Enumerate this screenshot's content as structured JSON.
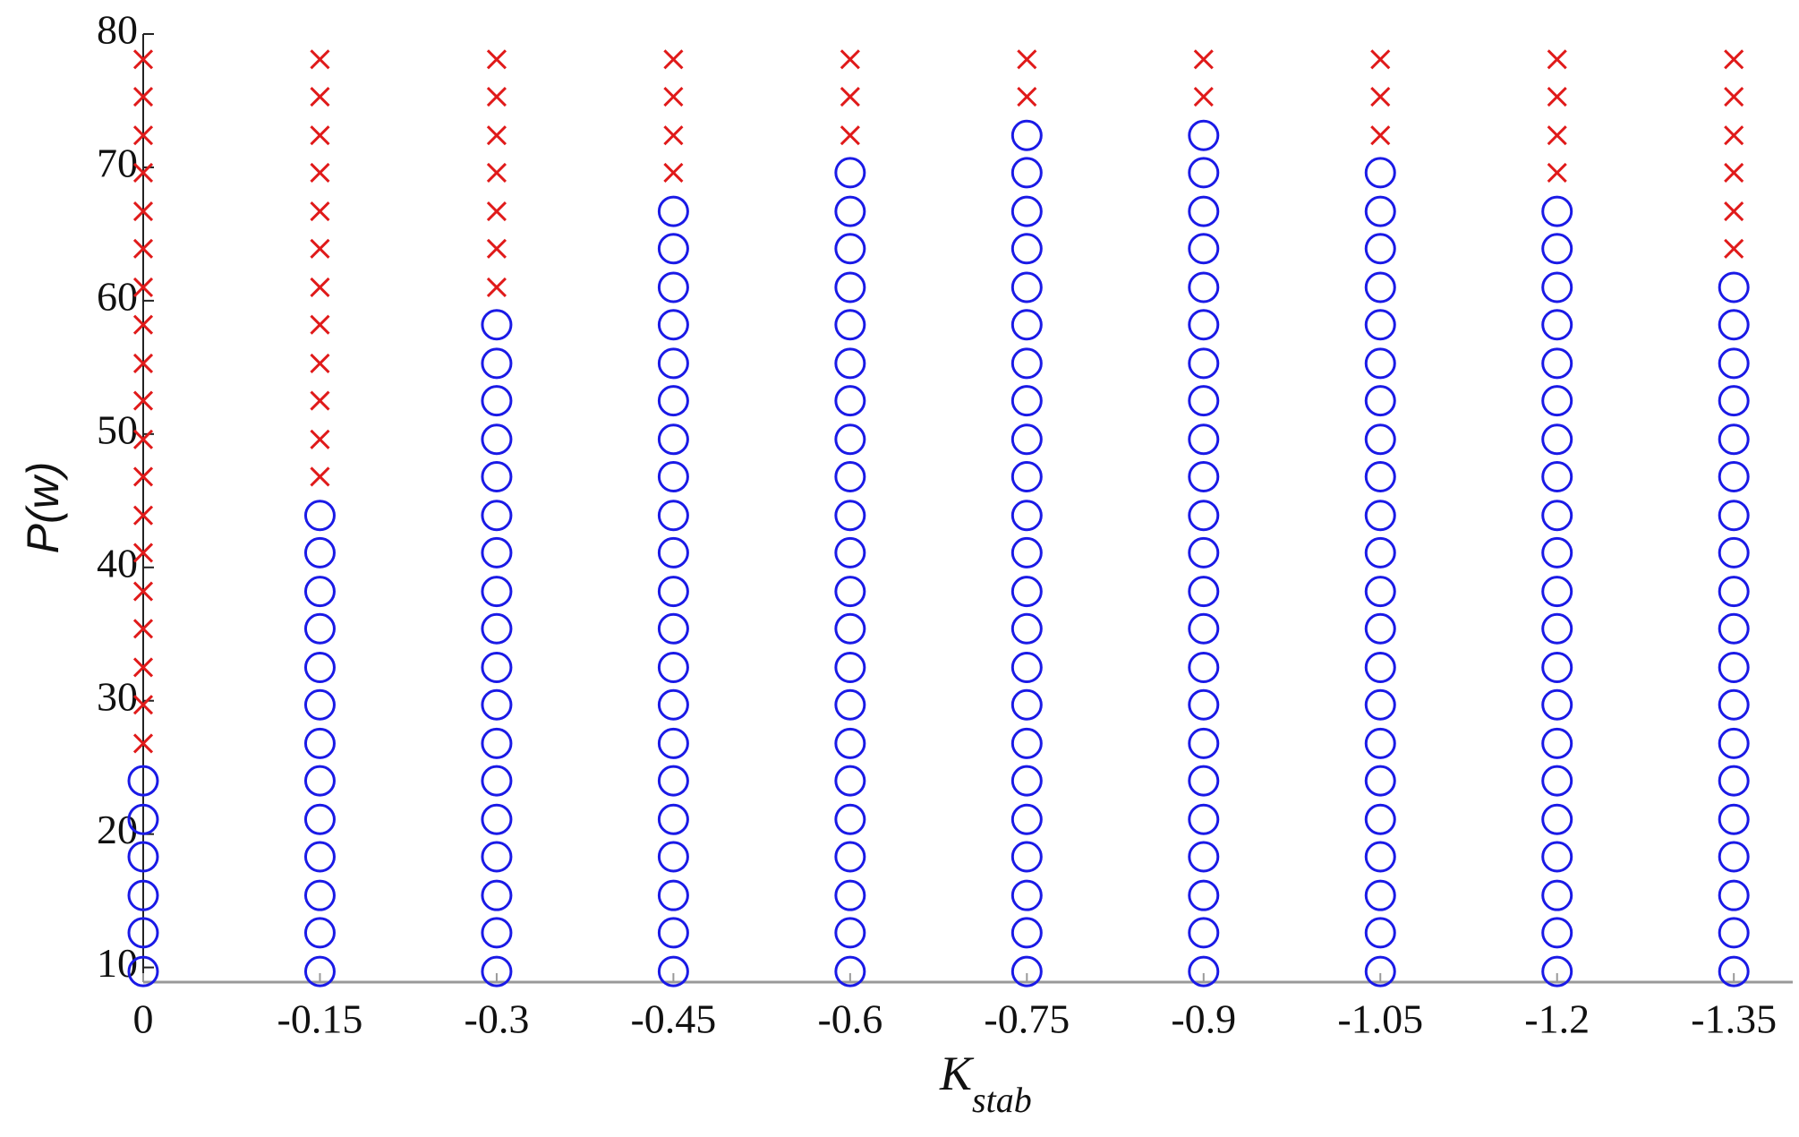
{
  "chart_data": {
    "type": "scatter",
    "y_label": "P(w)",
    "x_label": {
      "main": "K",
      "sub": "stab"
    },
    "xlim": [
      0,
      -1.4
    ],
    "ylim": [
      8.9,
      80
    ],
    "xticks": [
      0,
      -0.15,
      -0.3,
      -0.45,
      -0.6,
      -0.75,
      -0.9,
      -1.05,
      -1.2,
      -1.35
    ],
    "yticks": [
      10,
      20,
      30,
      40,
      50,
      60,
      70,
      80
    ],
    "marker_colors": {
      "circle": "#1a1ae6",
      "cross": "#e01a1a"
    },
    "columns": [
      {
        "x": 0,
        "circle": [
          9.7,
          12.6,
          15.4,
          18.3,
          21.1,
          24.0
        ],
        "cross": [
          26.8,
          29.7,
          32.5,
          35.4,
          38.2,
          41.1,
          43.9,
          46.8,
          49.6,
          52.5,
          55.3,
          58.2,
          61.0,
          63.9,
          66.7,
          69.6,
          72.4,
          75.3,
          78.1
        ]
      },
      {
        "x": -0.15,
        "circle": [
          9.7,
          12.6,
          15.4,
          18.3,
          21.1,
          24.0,
          26.8,
          29.7,
          32.5,
          35.4,
          38.2,
          41.1,
          43.9
        ],
        "cross": [
          46.8,
          49.6,
          52.5,
          55.3,
          58.2,
          61.0,
          63.9,
          66.7,
          69.6,
          72.4,
          75.3,
          78.1
        ]
      },
      {
        "x": -0.3,
        "circle": [
          9.7,
          12.6,
          15.4,
          18.3,
          21.1,
          24.0,
          26.8,
          29.7,
          32.5,
          35.4,
          38.2,
          41.1,
          43.9,
          46.8,
          49.6,
          52.5,
          55.3,
          58.2
        ],
        "cross": [
          61.0,
          63.9,
          66.7,
          69.6,
          72.4,
          75.3,
          78.1
        ]
      },
      {
        "x": -0.45,
        "circle": [
          9.7,
          12.6,
          15.4,
          18.3,
          21.1,
          24.0,
          26.8,
          29.7,
          32.5,
          35.4,
          38.2,
          41.1,
          43.9,
          46.8,
          49.6,
          52.5,
          55.3,
          58.2,
          61.0,
          63.9,
          66.7
        ],
        "cross": [
          69.6,
          72.4,
          75.3,
          78.1
        ]
      },
      {
        "x": -0.6,
        "circle": [
          9.7,
          12.6,
          15.4,
          18.3,
          21.1,
          24.0,
          26.8,
          29.7,
          32.5,
          35.4,
          38.2,
          41.1,
          43.9,
          46.8,
          49.6,
          52.5,
          55.3,
          58.2,
          61.0,
          63.9,
          66.7,
          69.6
        ],
        "cross": [
          72.4,
          75.3,
          78.1
        ]
      },
      {
        "x": -0.75,
        "circle": [
          9.7,
          12.6,
          15.4,
          18.3,
          21.1,
          24.0,
          26.8,
          29.7,
          32.5,
          35.4,
          38.2,
          41.1,
          43.9,
          46.8,
          49.6,
          52.5,
          55.3,
          58.2,
          61.0,
          63.9,
          66.7,
          69.6,
          72.4
        ],
        "cross": [
          75.3,
          78.1
        ]
      },
      {
        "x": -0.9,
        "circle": [
          9.7,
          12.6,
          15.4,
          18.3,
          21.1,
          24.0,
          26.8,
          29.7,
          32.5,
          35.4,
          38.2,
          41.1,
          43.9,
          46.8,
          49.6,
          52.5,
          55.3,
          58.2,
          61.0,
          63.9,
          66.7,
          69.6,
          72.4
        ],
        "cross": [
          75.3,
          78.1
        ]
      },
      {
        "x": -1.05,
        "circle": [
          9.7,
          12.6,
          15.4,
          18.3,
          21.1,
          24.0,
          26.8,
          29.7,
          32.5,
          35.4,
          38.2,
          41.1,
          43.9,
          46.8,
          49.6,
          52.5,
          55.3,
          58.2,
          61.0,
          63.9,
          66.7,
          69.6
        ],
        "cross": [
          72.4,
          75.3,
          78.1
        ]
      },
      {
        "x": -1.2,
        "circle": [
          9.7,
          12.6,
          15.4,
          18.3,
          21.1,
          24.0,
          26.8,
          29.7,
          32.5,
          35.4,
          38.2,
          41.1,
          43.9,
          46.8,
          49.6,
          52.5,
          55.3,
          58.2,
          61.0,
          63.9,
          66.7
        ],
        "cross": [
          69.6,
          72.4,
          75.3,
          78.1
        ]
      },
      {
        "x": -1.35,
        "circle": [
          9.7,
          12.6,
          15.4,
          18.3,
          21.1,
          24.0,
          26.8,
          29.7,
          32.5,
          35.4,
          38.2,
          41.1,
          43.9,
          46.8,
          49.6,
          52.5,
          55.3,
          58.2,
          61.0
        ],
        "cross": [
          63.9,
          66.7,
          69.6,
          72.4,
          75.3,
          78.1
        ]
      }
    ]
  }
}
